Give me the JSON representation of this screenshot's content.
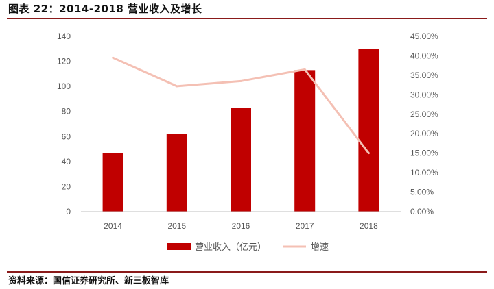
{
  "figure": {
    "title": "图表 22：2014-2018 营业收入及增长",
    "source": "资料来源：国信证券研究所、新三板智库"
  },
  "chart_data": {
    "type": "bar",
    "title": "",
    "xlabel": "",
    "ylabel": "",
    "categories": [
      "2014",
      "2015",
      "2016",
      "2017",
      "2018"
    ],
    "series": [
      {
        "name": "营业收入（亿元）",
        "type": "bar",
        "axis": "left",
        "values": [
          47,
          62,
          83,
          113,
          130
        ],
        "color": "#c00000"
      },
      {
        "name": "增速",
        "type": "line",
        "axis": "right",
        "values": [
          39.5,
          32.2,
          33.5,
          36.5,
          15.0
        ],
        "color": "#f4c0b4"
      }
    ],
    "ylim_left": [
      0,
      140
    ],
    "yticks_left": [
      "0",
      "20",
      "40",
      "60",
      "80",
      "100",
      "120",
      "140"
    ],
    "ylim_right": [
      0,
      45
    ],
    "yticks_right": [
      "0.00%",
      "5.00%",
      "10.00%",
      "15.00%",
      "20.00%",
      "25.00%",
      "30.00%",
      "35.00%",
      "40.00%",
      "45.00%"
    ],
    "grid": false,
    "legend_position": "bottom"
  }
}
